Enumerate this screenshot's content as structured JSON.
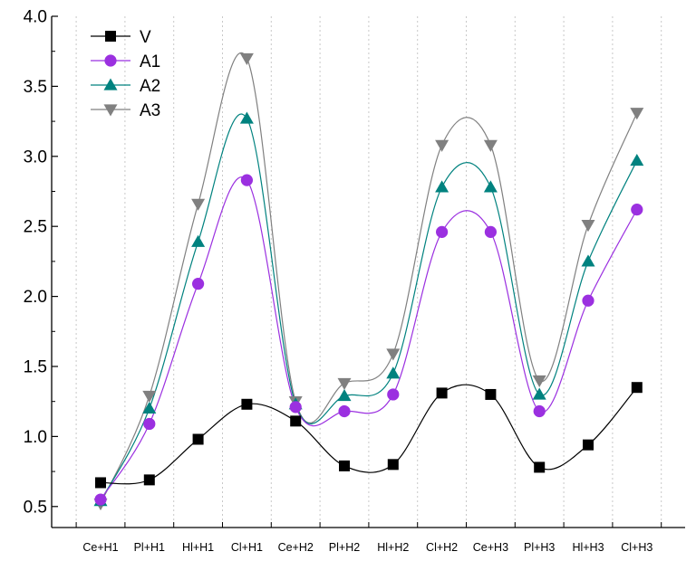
{
  "chart_data": {
    "type": "line",
    "title": "",
    "xlabel": "",
    "ylabel": "",
    "categories": [
      "Ce+H1",
      "Pl+H1",
      "Hl+H1",
      "Cl+H1",
      "Ce+H2",
      "Pl+H2",
      "Hl+H2",
      "Cl+H2",
      "Ce+H3",
      "Pl+H3",
      "Hl+H3",
      "Cl+H3"
    ],
    "ylim": [
      0.35,
      4.0
    ],
    "yticks": [
      "0.5",
      "1.0",
      "1.5",
      "2.0",
      "2.5",
      "3.0",
      "3.5",
      "4.0"
    ],
    "grid": "vertical-dotted",
    "legend_position": "top-left",
    "series": [
      {
        "name": "V",
        "marker": "square",
        "color": "#000000",
        "values": [
          0.67,
          0.69,
          0.98,
          1.23,
          1.11,
          0.79,
          0.8,
          1.31,
          1.3,
          0.78,
          0.94,
          1.35
        ]
      },
      {
        "name": "A1",
        "marker": "circle",
        "color": "#9b30e0",
        "values": [
          0.55,
          1.09,
          2.09,
          2.83,
          1.21,
          1.18,
          1.3,
          2.46,
          2.46,
          1.18,
          1.97,
          2.62
        ]
      },
      {
        "name": "A2",
        "marker": "triangle-up",
        "color": "#00827f",
        "values": [
          0.54,
          1.2,
          2.39,
          3.27,
          1.23,
          1.29,
          1.45,
          2.78,
          2.78,
          1.3,
          2.25,
          2.97
        ]
      },
      {
        "name": "A3",
        "marker": "triangle-down",
        "color": "#808080",
        "values": [
          0.52,
          1.29,
          2.66,
          3.7,
          1.25,
          1.38,
          1.59,
          3.08,
          3.08,
          1.4,
          2.51,
          3.31
        ]
      }
    ]
  }
}
